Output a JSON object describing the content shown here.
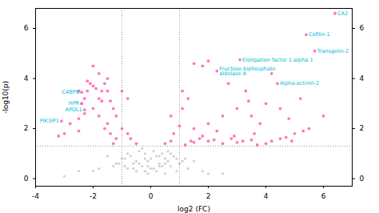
{
  "chart_data": {
    "type": "scatter",
    "xlabel": "log2 (FC)",
    "ylabel": "-log10(p)",
    "xlim": [
      -4,
      7
    ],
    "ylim": [
      -0.3,
      6.8
    ],
    "xticks": [
      -4,
      -2,
      0,
      2,
      4,
      6
    ],
    "yticks": [
      0,
      2,
      4,
      6
    ],
    "y2lim": [
      -0.3,
      6.8
    ],
    "y2ticks": [
      0,
      2,
      4,
      6
    ],
    "grid": false,
    "series": [
      {
        "color": "#b0b0b0",
        "marker": "circle",
        "values": [
          [
            -0.3,
            0.5
          ],
          [
            -0.2,
            0.3
          ],
          [
            0.1,
            0.4
          ],
          [
            0.3,
            0.6
          ],
          [
            0.5,
            0.8
          ],
          [
            0.7,
            0.5
          ],
          [
            -0.5,
            0.7
          ],
          [
            -0.8,
            0.4
          ],
          [
            1.0,
            0.6
          ],
          [
            -1.0,
            0.8
          ],
          [
            -1.5,
            0.9
          ],
          [
            1.5,
            0.7
          ],
          [
            -0.1,
            0.2
          ],
          [
            0.2,
            0.9
          ],
          [
            -0.4,
            1.1
          ],
          [
            0.4,
            1.0
          ],
          [
            -0.6,
            0.6
          ],
          [
            0.6,
            0.7
          ],
          [
            -0.9,
            0.5
          ],
          [
            0.9,
            0.3
          ],
          [
            -0.2,
            0.8
          ],
          [
            0.3,
            0.5
          ],
          [
            -0.7,
            0.9
          ],
          [
            0.7,
            1.0
          ],
          [
            -1.2,
            0.6
          ],
          [
            1.2,
            0.8
          ],
          [
            -0.3,
            1.2
          ],
          [
            0.1,
            1.1
          ],
          [
            -2.0,
            0.3
          ],
          [
            2.0,
            0.2
          ],
          [
            -3.0,
            0.1
          ],
          [
            0.0,
            0.4
          ],
          [
            -0.1,
            0.7
          ],
          [
            0.5,
            0.2
          ],
          [
            -0.5,
            0.3
          ],
          [
            0.8,
            0.9
          ],
          [
            -0.8,
            1.0
          ],
          [
            1.3,
            0.4
          ],
          [
            -1.3,
            0.5
          ],
          [
            -0.4,
            0.6
          ],
          [
            0.2,
            0.3
          ],
          [
            -0.9,
            0.8
          ],
          [
            0.6,
            1.1
          ],
          [
            -0.6,
            0.4
          ],
          [
            1.1,
            0.7
          ],
          [
            -1.1,
            0.6
          ],
          [
            0.4,
            0.5
          ],
          [
            -0.2,
            1.0
          ],
          [
            0.9,
            0.8
          ],
          [
            1.8,
            0.3
          ],
          [
            -1.8,
            0.4
          ],
          [
            2.5,
            0.2
          ],
          [
            -2.5,
            0.3
          ],
          [
            0.0,
            0.8
          ],
          [
            -0.1,
            0.5
          ],
          [
            0.3,
            0.9
          ],
          [
            0.5,
            0.6
          ]
        ]
      },
      {
        "color": "#ff69b4",
        "marker": "circle",
        "values": [
          [
            6.4,
            6.6
          ],
          [
            5.4,
            5.75
          ],
          [
            5.7,
            5.1
          ],
          [
            3.1,
            4.75
          ],
          [
            2.3,
            4.3
          ],
          [
            4.4,
            3.8
          ],
          [
            1.5,
            4.6
          ],
          [
            2.0,
            4.7
          ],
          [
            1.8,
            4.5
          ],
          [
            1.1,
            3.5
          ],
          [
            1.3,
            3.2
          ],
          [
            0.7,
            2.5
          ],
          [
            1.1,
            2.8
          ],
          [
            2.5,
            2.5
          ],
          [
            3.0,
            2.8
          ],
          [
            3.5,
            2.5
          ],
          [
            4.0,
            3.0
          ],
          [
            4.5,
            2.8
          ],
          [
            3.3,
            3.5
          ],
          [
            4.2,
            4.2
          ],
          [
            2.7,
            3.8
          ],
          [
            3.8,
            2.2
          ],
          [
            4.8,
            2.4
          ],
          [
            5.5,
            2.0
          ],
          [
            6.0,
            2.5
          ],
          [
            5.2,
            3.2
          ],
          [
            1.5,
            2.0
          ],
          [
            2.0,
            2.2
          ],
          [
            1.0,
            2.1
          ],
          [
            4.9,
            1.5
          ],
          [
            0.5,
            1.4
          ],
          [
            0.7,
            1.5
          ],
          [
            1.2,
            1.35
          ],
          [
            1.5,
            1.45
          ],
          [
            1.7,
            1.6
          ],
          [
            2.0,
            1.5
          ],
          [
            2.2,
            1.55
          ],
          [
            2.5,
            1.4
          ],
          [
            2.8,
            1.6
          ],
          [
            3.0,
            1.45
          ],
          [
            3.2,
            1.5
          ],
          [
            3.5,
            1.55
          ],
          [
            3.7,
            1.35
          ],
          [
            4.0,
            1.4
          ],
          [
            4.2,
            1.5
          ],
          [
            4.5,
            1.6
          ],
          [
            4.7,
            1.65
          ],
          [
            5.0,
            1.8
          ],
          [
            5.3,
            1.9
          ],
          [
            0.8,
            1.8
          ],
          [
            1.8,
            1.7
          ],
          [
            2.3,
            1.9
          ],
          [
            2.9,
            1.7
          ],
          [
            3.4,
            3.1
          ],
          [
            3.6,
            1.8
          ],
          [
            1.4,
            1.5
          ]
        ]
      },
      {
        "color": "#ff69b4",
        "marker": "circle",
        "values": [
          [
            -2.4,
            3.45
          ],
          [
            -2.4,
            3.0
          ],
          [
            -2.3,
            2.75
          ],
          [
            -3.1,
            2.3
          ],
          [
            -1.2,
            2.5
          ],
          [
            -1.3,
            2.8
          ],
          [
            -1.4,
            3.1
          ],
          [
            -1.5,
            3.5
          ],
          [
            -1.6,
            3.8
          ],
          [
            -1.7,
            3.5
          ],
          [
            -1.8,
            3.2
          ],
          [
            -1.9,
            3.6
          ],
          [
            -2.0,
            3.7
          ],
          [
            -2.1,
            3.8
          ],
          [
            -2.2,
            3.5
          ],
          [
            -2.3,
            3.2
          ],
          [
            -2.4,
            3.0
          ],
          [
            -2.5,
            3.5
          ],
          [
            -1.7,
            3.1
          ],
          [
            -2.0,
            4.5
          ],
          [
            -1.8,
            4.2
          ],
          [
            -2.2,
            3.9
          ],
          [
            -1.5,
            4.0
          ],
          [
            -1.0,
            3.5
          ],
          [
            -0.8,
            3.2
          ],
          [
            -1.5,
            2.2
          ],
          [
            -1.8,
            2.5
          ],
          [
            -2.0,
            2.8
          ],
          [
            -2.3,
            2.6
          ],
          [
            -2.5,
            2.4
          ],
          [
            -2.5,
            1.9
          ],
          [
            -2.8,
            2.2
          ],
          [
            -3.0,
            1.8
          ],
          [
            -3.2,
            1.7
          ],
          [
            -1.0,
            2.0
          ],
          [
            -1.2,
            1.6
          ],
          [
            -1.4,
            1.8
          ],
          [
            -1.6,
            2.0
          ],
          [
            -0.5,
            1.4
          ],
          [
            -0.7,
            1.6
          ],
          [
            -0.8,
            1.8
          ],
          [
            -1.3,
            1.4
          ]
        ]
      }
    ],
    "reference_lines": [
      {
        "y": 1.3,
        "color": "gray",
        "line_style": "dotted"
      },
      {
        "x": -1,
        "color": "gray",
        "line_style": "dotted"
      },
      {
        "x": 1,
        "color": "gray",
        "line_style": "dotted"
      }
    ],
    "annotations": [
      {
        "text": "CA2",
        "x": 6.4,
        "y": 6.6,
        "color": "#00bcd4"
      },
      {
        "text": "Cofilin-1",
        "x": 5.4,
        "y": 5.75,
        "color": "#00bcd4"
      },
      {
        "text": "Transgelin-2",
        "x": 5.7,
        "y": 5.1,
        "color": "#00bcd4"
      },
      {
        "text": "Elongation factor 1-alpha 1",
        "x": 3.1,
        "y": 4.75,
        "color": "#00bcd4"
      },
      {
        "text": "Fructose-biphosphate\naldolase A",
        "x": 2.3,
        "y": 4.3,
        "color": "#00bcd4"
      },
      {
        "text": "Alpha-actinin-2",
        "x": 4.4,
        "y": 3.8,
        "color": "#00bcd4"
      },
      {
        "text": "C4BPB",
        "x": -2.4,
        "y": 3.45,
        "color": "#00bcd4"
      },
      {
        "text": "HPR",
        "x": -2.4,
        "y": 3.0,
        "color": "#00bcd4"
      },
      {
        "text": "APOL1",
        "x": -2.3,
        "y": 2.75,
        "color": "#00bcd4"
      },
      {
        "text": "PIK3IP1",
        "x": -3.1,
        "y": 2.3,
        "color": "#00bcd4"
      }
    ]
  }
}
